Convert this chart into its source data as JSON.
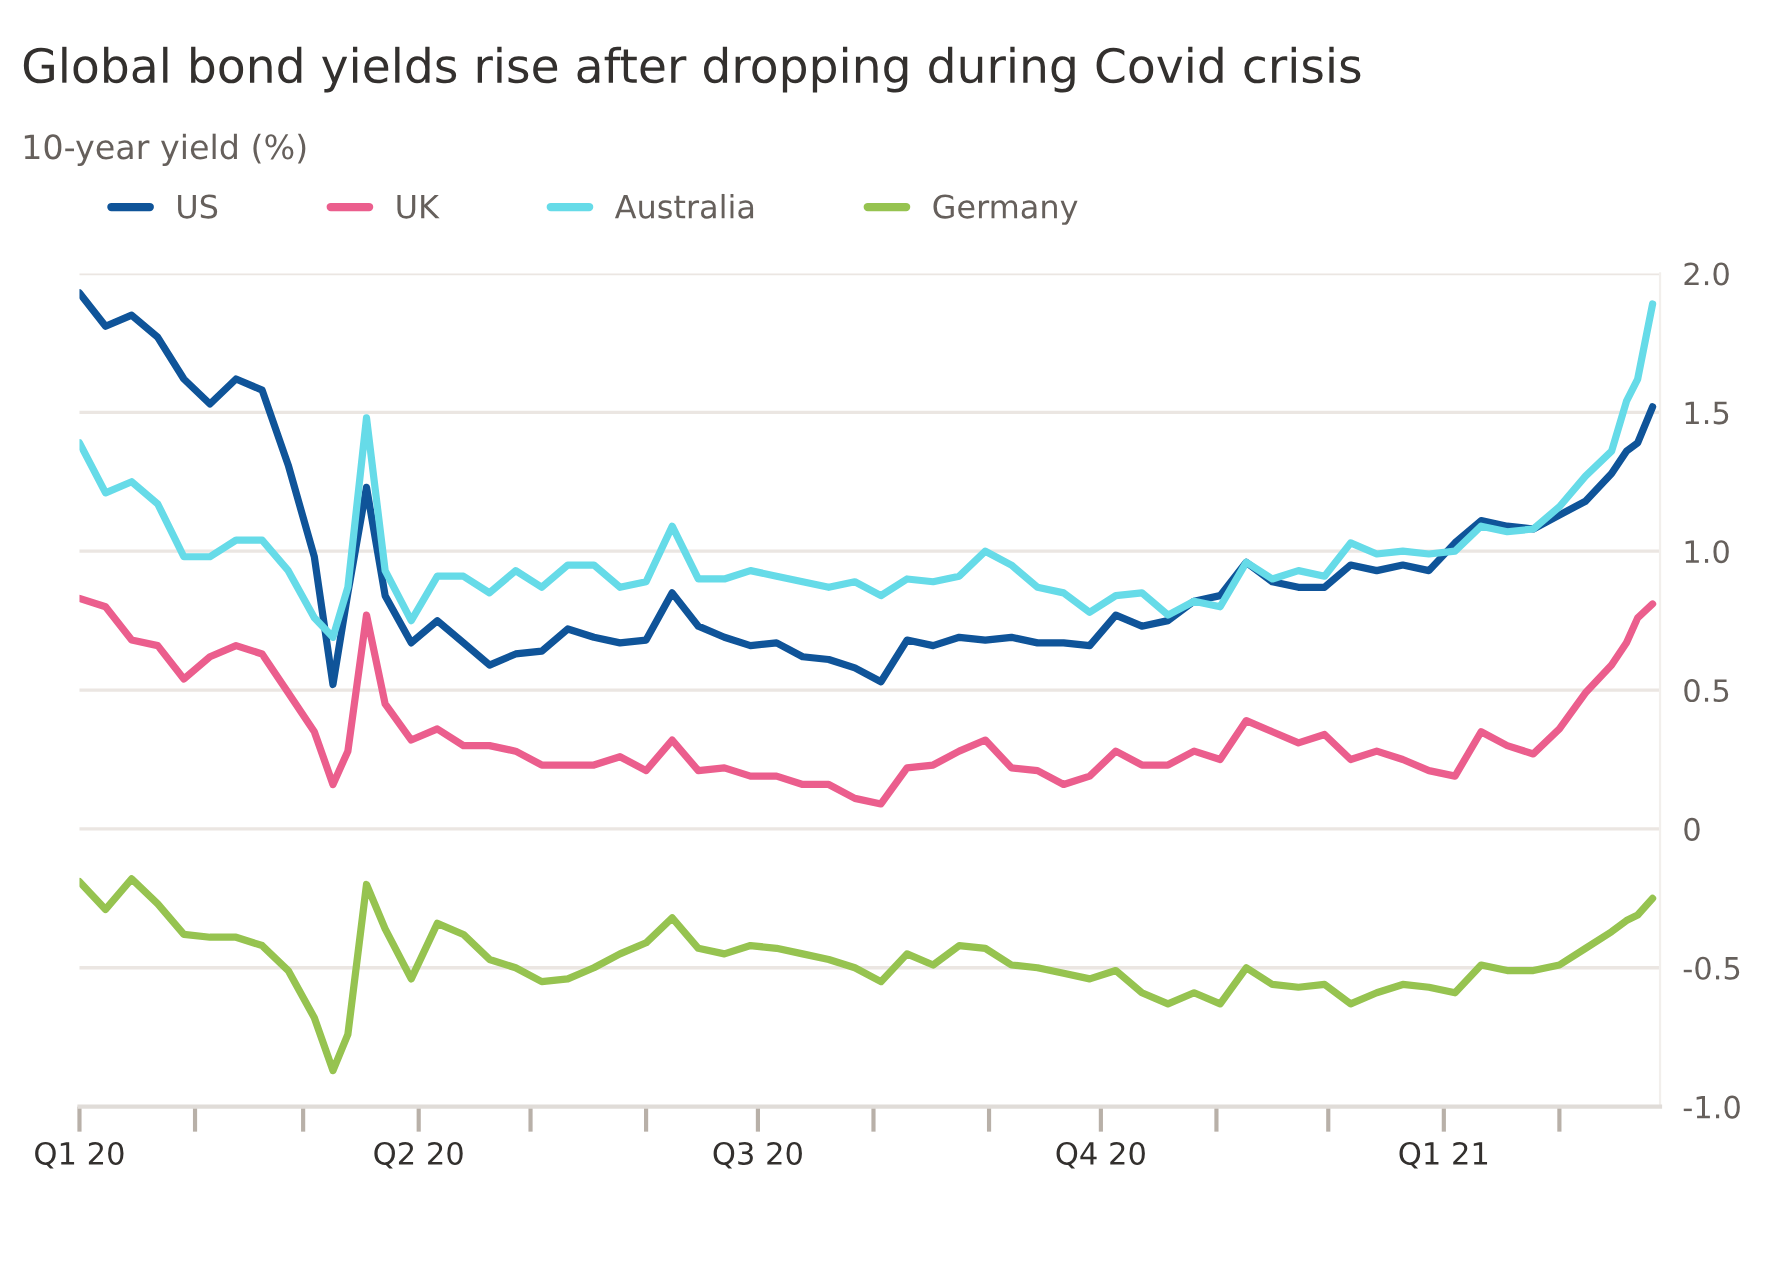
{
  "chart_data": {
    "type": "line",
    "title": "Global bond yields rise after dropping during Covid crisis",
    "subtitle": "10-year yield (%)",
    "x": [
      "2020-01-01",
      "2020-01-08",
      "2020-01-15",
      "2020-01-22",
      "2020-01-29",
      "2020-02-05",
      "2020-02-12",
      "2020-02-19",
      "2020-02-26",
      "2020-03-04",
      "2020-03-09",
      "2020-03-13",
      "2020-03-18",
      "2020-03-23",
      "2020-03-30",
      "2020-04-06",
      "2020-04-13",
      "2020-04-20",
      "2020-04-27",
      "2020-05-04",
      "2020-05-11",
      "2020-05-18",
      "2020-05-25",
      "2020-06-01",
      "2020-06-08",
      "2020-06-15",
      "2020-06-22",
      "2020-06-29",
      "2020-07-06",
      "2020-07-13",
      "2020-07-20",
      "2020-07-27",
      "2020-08-03",
      "2020-08-10",
      "2020-08-17",
      "2020-08-24",
      "2020-08-31",
      "2020-09-07",
      "2020-09-14",
      "2020-09-21",
      "2020-09-28",
      "2020-10-05",
      "2020-10-12",
      "2020-10-19",
      "2020-10-26",
      "2020-11-02",
      "2020-11-09",
      "2020-11-16",
      "2020-11-23",
      "2020-11-30",
      "2020-12-07",
      "2020-12-14",
      "2020-12-21",
      "2020-12-28",
      "2021-01-04",
      "2021-01-11",
      "2021-01-18",
      "2021-01-25",
      "2021-02-01",
      "2021-02-08",
      "2021-02-15",
      "2021-02-19",
      "2021-02-22",
      "2021-02-26"
    ],
    "series": [
      {
        "name": "US",
        "color": "#0f5499",
        "values": [
          1.93,
          1.81,
          1.85,
          1.77,
          1.62,
          1.53,
          1.62,
          1.58,
          1.31,
          0.98,
          0.52,
          0.85,
          1.23,
          0.84,
          0.67,
          0.75,
          0.67,
          0.59,
          0.63,
          0.64,
          0.72,
          0.69,
          0.67,
          0.68,
          0.85,
          0.73,
          0.69,
          0.66,
          0.67,
          0.62,
          0.61,
          0.58,
          0.53,
          0.68,
          0.66,
          0.69,
          0.68,
          0.69,
          0.67,
          0.67,
          0.66,
          0.77,
          0.73,
          0.75,
          0.82,
          0.84,
          0.96,
          0.89,
          0.87,
          0.87,
          0.95,
          0.93,
          0.95,
          0.93,
          1.03,
          1.11,
          1.09,
          1.08,
          1.13,
          1.18,
          1.28,
          1.36,
          1.39,
          1.52
        ]
      },
      {
        "name": "UK",
        "color": "#eb5e8d",
        "values": [
          0.83,
          0.8,
          0.68,
          0.66,
          0.54,
          0.62,
          0.66,
          0.63,
          0.49,
          0.35,
          0.16,
          0.28,
          0.77,
          0.45,
          0.32,
          0.36,
          0.3,
          0.3,
          0.28,
          0.23,
          0.23,
          0.23,
          0.26,
          0.21,
          0.32,
          0.21,
          0.22,
          0.19,
          0.19,
          0.16,
          0.16,
          0.11,
          0.09,
          0.22,
          0.23,
          0.28,
          0.32,
          0.22,
          0.21,
          0.16,
          0.19,
          0.28,
          0.23,
          0.23,
          0.28,
          0.25,
          0.39,
          0.35,
          0.31,
          0.34,
          0.25,
          0.28,
          0.25,
          0.21,
          0.19,
          0.35,
          0.3,
          0.27,
          0.36,
          0.49,
          0.59,
          0.67,
          0.76,
          0.81
        ]
      },
      {
        "name": "Australia",
        "color": "#66dbe8",
        "values": [
          1.39,
          1.21,
          1.25,
          1.17,
          0.98,
          0.98,
          1.04,
          1.04,
          0.93,
          0.76,
          0.69,
          0.87,
          1.48,
          0.93,
          0.75,
          0.91,
          0.91,
          0.85,
          0.93,
          0.87,
          0.95,
          0.95,
          0.87,
          0.89,
          1.09,
          0.9,
          0.9,
          0.93,
          0.91,
          0.89,
          0.87,
          0.89,
          0.84,
          0.9,
          0.89,
          0.91,
          1.0,
          0.95,
          0.87,
          0.85,
          0.78,
          0.84,
          0.85,
          0.77,
          0.82,
          0.8,
          0.96,
          0.9,
          0.93,
          0.91,
          1.03,
          0.99,
          1.0,
          0.99,
          1.0,
          1.09,
          1.07,
          1.08,
          1.16,
          1.27,
          1.36,
          1.54,
          1.62,
          1.89
        ]
      },
      {
        "name": "Germany",
        "color": "#96c350",
        "values": [
          -0.19,
          -0.29,
          -0.18,
          -0.27,
          -0.38,
          -0.39,
          -0.39,
          -0.42,
          -0.51,
          -0.68,
          -0.87,
          -0.74,
          -0.2,
          -0.36,
          -0.54,
          -0.34,
          -0.38,
          -0.47,
          -0.5,
          -0.55,
          -0.54,
          -0.5,
          -0.45,
          -0.41,
          -0.32,
          -0.43,
          -0.45,
          -0.42,
          -0.43,
          -0.45,
          -0.47,
          -0.5,
          -0.55,
          -0.45,
          -0.49,
          -0.42,
          -0.43,
          -0.49,
          -0.5,
          -0.52,
          -0.54,
          -0.51,
          -0.59,
          -0.63,
          -0.59,
          -0.63,
          -0.5,
          -0.56,
          -0.57,
          -0.56,
          -0.63,
          -0.59,
          -0.56,
          -0.57,
          -0.59,
          -0.49,
          -0.51,
          -0.51,
          -0.49,
          -0.43,
          -0.37,
          -0.33,
          -0.31,
          -0.25
        ]
      }
    ],
    "xlim": [
      "2020-01-01",
      "2021-02-28"
    ],
    "xticks": [
      {
        "value": "2020-01-01",
        "label": "Q1 20"
      },
      {
        "value": "2020-02-01",
        "label": null
      },
      {
        "value": "2020-03-01",
        "label": null
      },
      {
        "value": "2020-04-01",
        "label": "Q2 20"
      },
      {
        "value": "2020-05-01",
        "label": null
      },
      {
        "value": "2020-06-01",
        "label": null
      },
      {
        "value": "2020-07-01",
        "label": "Q3 20"
      },
      {
        "value": "2020-08-01",
        "label": null
      },
      {
        "value": "2020-09-01",
        "label": null
      },
      {
        "value": "2020-10-01",
        "label": "Q4 20"
      },
      {
        "value": "2020-11-01",
        "label": null
      },
      {
        "value": "2020-12-01",
        "label": null
      },
      {
        "value": "2021-01-01",
        "label": "Q1 21"
      },
      {
        "value": "2021-02-01",
        "label": null
      }
    ],
    "ylim": [
      -1.0,
      2.0
    ],
    "yticks": [
      {
        "value": -1.0,
        "label": "-1.0"
      },
      {
        "value": -0.5,
        "label": "-0.5"
      },
      0,
      {
        "value": 0.5,
        "label": "0.5"
      },
      {
        "value": 1.0,
        "label": "1.0"
      },
      {
        "value": 1.5,
        "label": "1.5"
      },
      {
        "value": 2.0,
        "label": "2.0"
      }
    ],
    "grid": "y",
    "legend": "top left",
    "line_style": "solid",
    "marker": "none"
  }
}
